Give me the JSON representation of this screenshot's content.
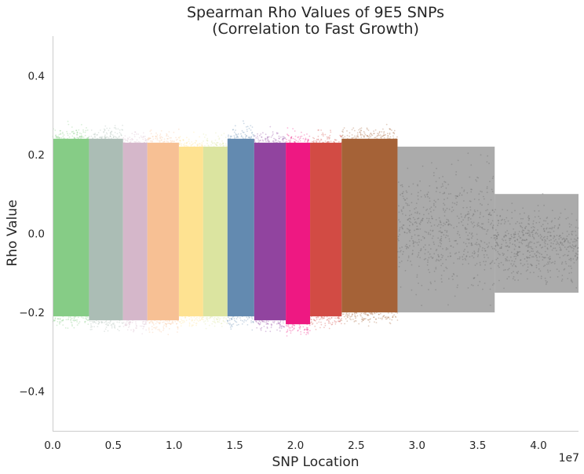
{
  "chart_data": {
    "type": "scatter",
    "title_line1": "Spearman Rho Values of 9E5 SNPs",
    "title_line2": "(Correlation to Fast Growth)",
    "xlabel": "SNP Location",
    "ylabel": "Rho Value",
    "x_offset_label": "1e7",
    "xlim": [
      0,
      4.33
    ],
    "ylim": [
      -0.5,
      0.5
    ],
    "x_unit_multiplier": 10000000,
    "x_ticks": [
      {
        "value": 0.0,
        "label": "0.0"
      },
      {
        "value": 0.5,
        "label": "0.5"
      },
      {
        "value": 1.0,
        "label": "1.0"
      },
      {
        "value": 1.5,
        "label": "1.5"
      },
      {
        "value": 2.0,
        "label": "2.0"
      },
      {
        "value": 2.5,
        "label": "2.5"
      },
      {
        "value": 3.0,
        "label": "3.0"
      },
      {
        "value": 3.5,
        "label": "3.5"
      },
      {
        "value": 4.0,
        "label": "4.0"
      }
    ],
    "y_ticks": [
      {
        "value": 0.4,
        "label": "0.4"
      },
      {
        "value": 0.2,
        "label": "0.2"
      },
      {
        "value": 0.0,
        "label": "0.0"
      },
      {
        "value": -0.2,
        "label": "−0.2"
      },
      {
        "value": -0.4,
        "label": "−0.4"
      }
    ],
    "grid": false,
    "bands": [
      {
        "x_start": 0.0,
        "x_end": 0.3,
        "color": "#7fc97f",
        "low": -0.21,
        "high": 0.24
      },
      {
        "x_start": 0.3,
        "x_end": 0.58,
        "color": "#a7b9b1",
        "low": -0.22,
        "high": 0.24
      },
      {
        "x_start": 0.58,
        "x_end": 0.78,
        "color": "#d3b3c7",
        "low": -0.22,
        "high": 0.23
      },
      {
        "x_start": 0.78,
        "x_end": 1.04,
        "color": "#f7bd8e",
        "low": -0.22,
        "high": 0.23
      },
      {
        "x_start": 1.04,
        "x_end": 1.24,
        "color": "#fee08b",
        "low": -0.21,
        "high": 0.22
      },
      {
        "x_start": 1.24,
        "x_end": 1.44,
        "color": "#d9e39b",
        "low": -0.21,
        "high": 0.22
      },
      {
        "x_start": 1.44,
        "x_end": 1.66,
        "color": "#5b84ac",
        "low": -0.21,
        "high": 0.24
      },
      {
        "x_start": 1.66,
        "x_end": 1.92,
        "color": "#8b3a9a",
        "low": -0.22,
        "high": 0.23
      },
      {
        "x_start": 1.92,
        "x_end": 2.12,
        "color": "#ed0c7b",
        "low": -0.23,
        "high": 0.23
      },
      {
        "x_start": 2.12,
        "x_end": 2.38,
        "color": "#d0413a",
        "low": -0.21,
        "high": 0.23
      },
      {
        "x_start": 2.38,
        "x_end": 2.84,
        "color": "#a05a2c",
        "low": -0.2,
        "high": 0.24
      },
      {
        "x_start": 2.84,
        "x_end": 3.64,
        "color": "#666666",
        "low": -0.2,
        "high": 0.22
      },
      {
        "x_start": 3.64,
        "x_end": 4.33,
        "color": "#666666",
        "low": -0.15,
        "high": 0.1
      }
    ]
  }
}
